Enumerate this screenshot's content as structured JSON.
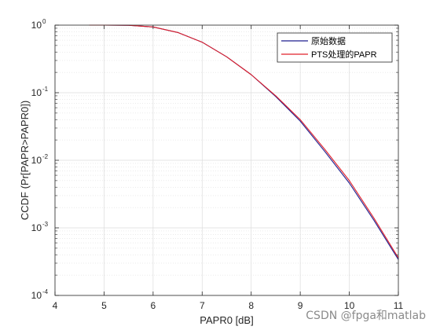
{
  "chart_data": {
    "type": "line",
    "title": "",
    "xlabel": "PAPR0 [dB]",
    "ylabel": "CCDF (Pr[PAPR>PAPR0])",
    "xlim": [
      4,
      11
    ],
    "ylim": [
      0.0001,
      1
    ],
    "yscale": "log",
    "grid": true,
    "minor_grid": true,
    "legend_position": "top-right",
    "x_ticks": [
      4,
      5,
      6,
      7,
      8,
      9,
      10,
      11
    ],
    "y_ticks": [
      {
        "value": 0.0001,
        "base": "10",
        "exp": "-4"
      },
      {
        "value": 0.001,
        "base": "10",
        "exp": "-3"
      },
      {
        "value": 0.01,
        "base": "10",
        "exp": "-2"
      },
      {
        "value": 0.1,
        "base": "10",
        "exp": "-1"
      },
      {
        "value": 1,
        "base": "10",
        "exp": "0"
      }
    ],
    "x": [
      4.7,
      5.0,
      5.5,
      6.0,
      6.5,
      7.0,
      7.5,
      8.0,
      8.5,
      9.0,
      9.5,
      10.0,
      10.5,
      11.0
    ],
    "series": [
      {
        "name": "原始数据",
        "color": "#1f1f8f",
        "values": [
          1.0,
          1.0,
          0.995,
          0.94,
          0.78,
          0.56,
          0.34,
          0.185,
          0.088,
          0.038,
          0.0135,
          0.0046,
          0.0013,
          0.00034
        ]
      },
      {
        "name": "PTS处理的PAPR",
        "color": "#e0202a",
        "values": [
          1.0,
          1.0,
          0.995,
          0.94,
          0.78,
          0.56,
          0.34,
          0.185,
          0.09,
          0.04,
          0.0145,
          0.005,
          0.0014,
          0.00036
        ]
      }
    ]
  },
  "watermark": "CSDN @fpga和matlab"
}
